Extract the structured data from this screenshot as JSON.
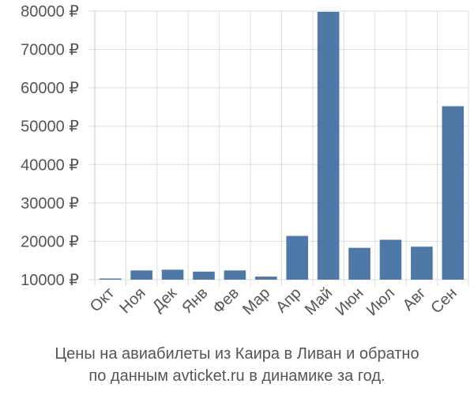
{
  "chart_data": {
    "type": "bar",
    "categories": [
      "Окт",
      "Ноя",
      "Дек",
      "Янв",
      "Фев",
      "Мар",
      "Апр",
      "Май",
      "Июн",
      "Июл",
      "Авг",
      "Сен"
    ],
    "values": [
      10300,
      12400,
      12600,
      12100,
      12400,
      10800,
      21400,
      79800,
      18300,
      20400,
      18600,
      55200
    ],
    "ylim": [
      10000,
      80000
    ],
    "yticks": [
      10000,
      20000,
      30000,
      40000,
      50000,
      60000,
      70000,
      80000
    ],
    "ytick_labels": [
      "10000 ₽",
      "20000 ₽",
      "30000 ₽",
      "40000 ₽",
      "50000 ₽",
      "60000 ₽",
      "70000 ₽",
      "80000 ₽"
    ],
    "grid": true,
    "bar_color": "#4e79a7",
    "grid_color": "#dddddd"
  },
  "caption": {
    "line1": "Цены на авиабилеты из Каира в Ливан и обратно",
    "line2": "по данным avticket.ru в динамике за год."
  }
}
